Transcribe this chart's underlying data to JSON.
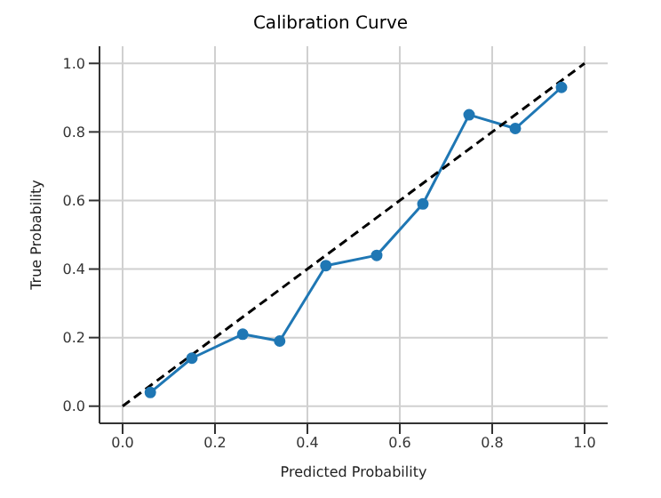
{
  "chart_data": {
    "type": "line",
    "title": "Calibration Curve",
    "xlabel": "Predicted Probability",
    "ylabel": "True Probability",
    "series": [
      {
        "color": "#1f77b4",
        "marker": "circle",
        "line_style": "solid",
        "x": [
          0.06,
          0.15,
          0.26,
          0.34,
          0.44,
          0.55,
          0.65,
          0.75,
          0.85,
          0.95
        ],
        "values": [
          0.04,
          0.14,
          0.21,
          0.19,
          0.41,
          0.44,
          0.59,
          0.85,
          0.81,
          0.93
        ]
      },
      {
        "color": "#000000",
        "marker": "none",
        "line_style": "dashed",
        "x": [
          0,
          1
        ],
        "values": [
          0,
          1
        ]
      }
    ],
    "xlim": [
      -0.05,
      1.05
    ],
    "ylim": [
      -0.05,
      1.05
    ],
    "xticks": [
      {
        "value": 0,
        "label": "0.0"
      },
      0.2,
      0.4,
      0.6,
      0.8,
      {
        "value": 1,
        "label": "1.0"
      }
    ],
    "yticks": [
      {
        "value": 0,
        "label": "0.0"
      },
      0.2,
      0.4,
      0.6,
      0.8,
      {
        "value": 1,
        "label": "1.0"
      }
    ],
    "grid": true
  }
}
